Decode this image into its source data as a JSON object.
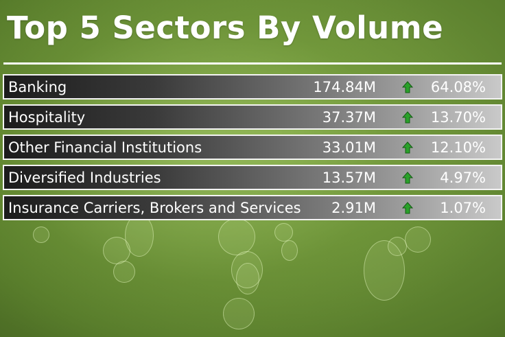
{
  "tile": {
    "title": "Top 5 Sectors By Volume",
    "trend_icon": "up-arrow-icon",
    "trend_color": "#2aa12a"
  },
  "sectors": [
    {
      "name": "Banking",
      "volume": "174.84M",
      "trend": "up",
      "percent": "64.08%"
    },
    {
      "name": "Hospitality",
      "volume": "37.37M",
      "trend": "up",
      "percent": "13.70%"
    },
    {
      "name": "Other Financial Institutions",
      "volume": "33.01M",
      "trend": "up",
      "percent": "12.10%"
    },
    {
      "name": "Diversified Industries",
      "volume": "13.57M",
      "trend": "up",
      "percent": "4.97%"
    },
    {
      "name": "Insurance Carriers, Brokers and Services",
      "volume": "2.91M",
      "trend": "up",
      "percent": "1.07%"
    }
  ]
}
